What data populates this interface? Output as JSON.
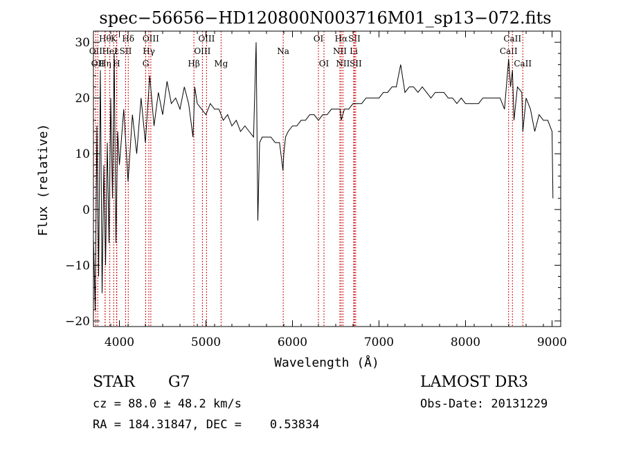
{
  "chart_data": {
    "type": "line",
    "title": "spec−56656−HD120800N003716M01_sp13−072.fits",
    "xlabel": "Wavelength (Å)",
    "ylabel": "Flux (relative)",
    "xlim": [
      3700,
      9100
    ],
    "ylim": [
      -21,
      32
    ],
    "xticks": [
      4000,
      5000,
      6000,
      7000,
      8000,
      9000
    ],
    "yticks": [
      -20,
      -10,
      0,
      10,
      20,
      30
    ],
    "xtick_labels": [
      "4000",
      "5000",
      "6000",
      "7000",
      "8000",
      "9000"
    ],
    "ytick_labels": [
      "−20",
      "−10",
      "0",
      "10",
      "20",
      "30"
    ],
    "grid": false,
    "series": [
      {
        "color": "#000000",
        "x": [
          3700,
          3720,
          3740,
          3760,
          3780,
          3800,
          3820,
          3840,
          3860,
          3880,
          3900,
          3920,
          3940,
          3960,
          3980,
          4000,
          4050,
          4100,
          4150,
          4200,
          4250,
          4300,
          4350,
          4400,
          4450,
          4500,
          4550,
          4600,
          4650,
          4700,
          4750,
          4800,
          4850,
          4860,
          4870,
          4900,
          4950,
          5000,
          5050,
          5100,
          5150,
          5200,
          5250,
          5300,
          5350,
          5400,
          5450,
          5500,
          5550,
          5580,
          5600,
          5620,
          5650,
          5700,
          5750,
          5800,
          5850,
          5890,
          5900,
          5920,
          5950,
          6000,
          6050,
          6100,
          6150,
          6200,
          6250,
          6300,
          6350,
          6400,
          6450,
          6500,
          6550,
          6563,
          6600,
          6650,
          6700,
          6750,
          6800,
          6850,
          6900,
          6950,
          7000,
          7050,
          7100,
          7150,
          7200,
          7250,
          7300,
          7350,
          7400,
          7450,
          7500,
          7550,
          7600,
          7650,
          7700,
          7750,
          7800,
          7850,
          7900,
          7950,
          8000,
          8050,
          8100,
          8150,
          8200,
          8250,
          8300,
          8350,
          8400,
          8450,
          8498,
          8520,
          8542,
          8560,
          8600,
          8650,
          8662,
          8700,
          8750,
          8800,
          8850,
          8900,
          8950,
          9000,
          9010
        ],
        "y": [
          -5,
          -18,
          15,
          -12,
          25,
          -15,
          8,
          -10,
          12,
          -6,
          20,
          2,
          28,
          -6,
          14,
          8,
          18,
          5,
          17,
          10,
          20,
          12,
          24,
          15,
          21,
          17,
          23,
          19,
          20,
          18,
          22,
          19,
          13,
          17,
          22,
          19,
          18,
          17,
          19,
          18,
          18,
          16,
          17,
          15,
          16,
          14,
          15,
          14,
          13,
          30,
          -2,
          12,
          13,
          13,
          13,
          12,
          12,
          7,
          10,
          13,
          14,
          15,
          15,
          16,
          16,
          17,
          17,
          16,
          17,
          17,
          18,
          18,
          18,
          16,
          18,
          18,
          19,
          19,
          19,
          20,
          20,
          20,
          20,
          21,
          21,
          22,
          22,
          26,
          21,
          22,
          22,
          21,
          22,
          21,
          20,
          21,
          21,
          21,
          20,
          20,
          19,
          20,
          19,
          19,
          19,
          19,
          20,
          20,
          20,
          20,
          20,
          18,
          27,
          22,
          25,
          16,
          22,
          21,
          14,
          20,
          18,
          14,
          17,
          16,
          16,
          14,
          2
        ]
      }
    ],
    "line_markers": [
      {
        "w": 3727,
        "tier": 1,
        "label": "OII"
      },
      {
        "w": 3750,
        "tier": 2,
        "label": "OII"
      },
      {
        "w": 3835,
        "tier": 0,
        "label": "Hθ"
      },
      {
        "w": 3835,
        "tier": 2,
        "label": "Hη"
      },
      {
        "w": 3889,
        "tier": 1,
        "label": "HeI"
      },
      {
        "w": 3934,
        "tier": 0,
        "label": "K"
      },
      {
        "w": 3968,
        "tier": 2,
        "label": "H"
      },
      {
        "w": 3970,
        "tier": 1,
        "label": "ε"
      },
      {
        "w": 4072,
        "tier": 1,
        "label": "SII"
      },
      {
        "w": 4102,
        "tier": 0,
        "label": "Hδ"
      },
      {
        "w": 4304,
        "tier": 2,
        "label": "G"
      },
      {
        "w": 4340,
        "tier": 1,
        "label": "Hγ"
      },
      {
        "w": 4363,
        "tier": 0,
        "label": "OIII"
      },
      {
        "w": 4861,
        "tier": 2,
        "label": "Hβ"
      },
      {
        "w": 4959,
        "tier": 1,
        "label": "OIII"
      },
      {
        "w": 5007,
        "tier": 0,
        "label": "OIII"
      },
      {
        "w": 5175,
        "tier": 2,
        "label": "Mg"
      },
      {
        "w": 5893,
        "tier": 1,
        "label": "Na"
      },
      {
        "w": 6300,
        "tier": 0,
        "label": "OI"
      },
      {
        "w": 6364,
        "tier": 2,
        "label": "OI"
      },
      {
        "w": 6548,
        "tier": 1,
        "label": "NII"
      },
      {
        "w": 6563,
        "tier": 0,
        "label": "Hα"
      },
      {
        "w": 6583,
        "tier": 2,
        "label": "NII"
      },
      {
        "w": 6708,
        "tier": 1,
        "label": "Li"
      },
      {
        "w": 6716,
        "tier": 0,
        "label": "SII"
      },
      {
        "w": 6731,
        "tier": 2,
        "label": "SII"
      },
      {
        "w": 8498,
        "tier": 1,
        "label": "CaII"
      },
      {
        "w": 8542,
        "tier": 0,
        "label": "CaII"
      },
      {
        "w": 8662,
        "tier": 2,
        "label": "CaII"
      }
    ],
    "marker_color": "#cc0000"
  },
  "footer": {
    "class_label": "STAR",
    "subclass": "G7",
    "cz": "cz = 88.0 ± 48.2 km/s",
    "radec": "RA = 184.31847, DEC =    0.53834",
    "survey": "LAMOST DR3",
    "obs_date": "Obs-Date: 20131229"
  }
}
